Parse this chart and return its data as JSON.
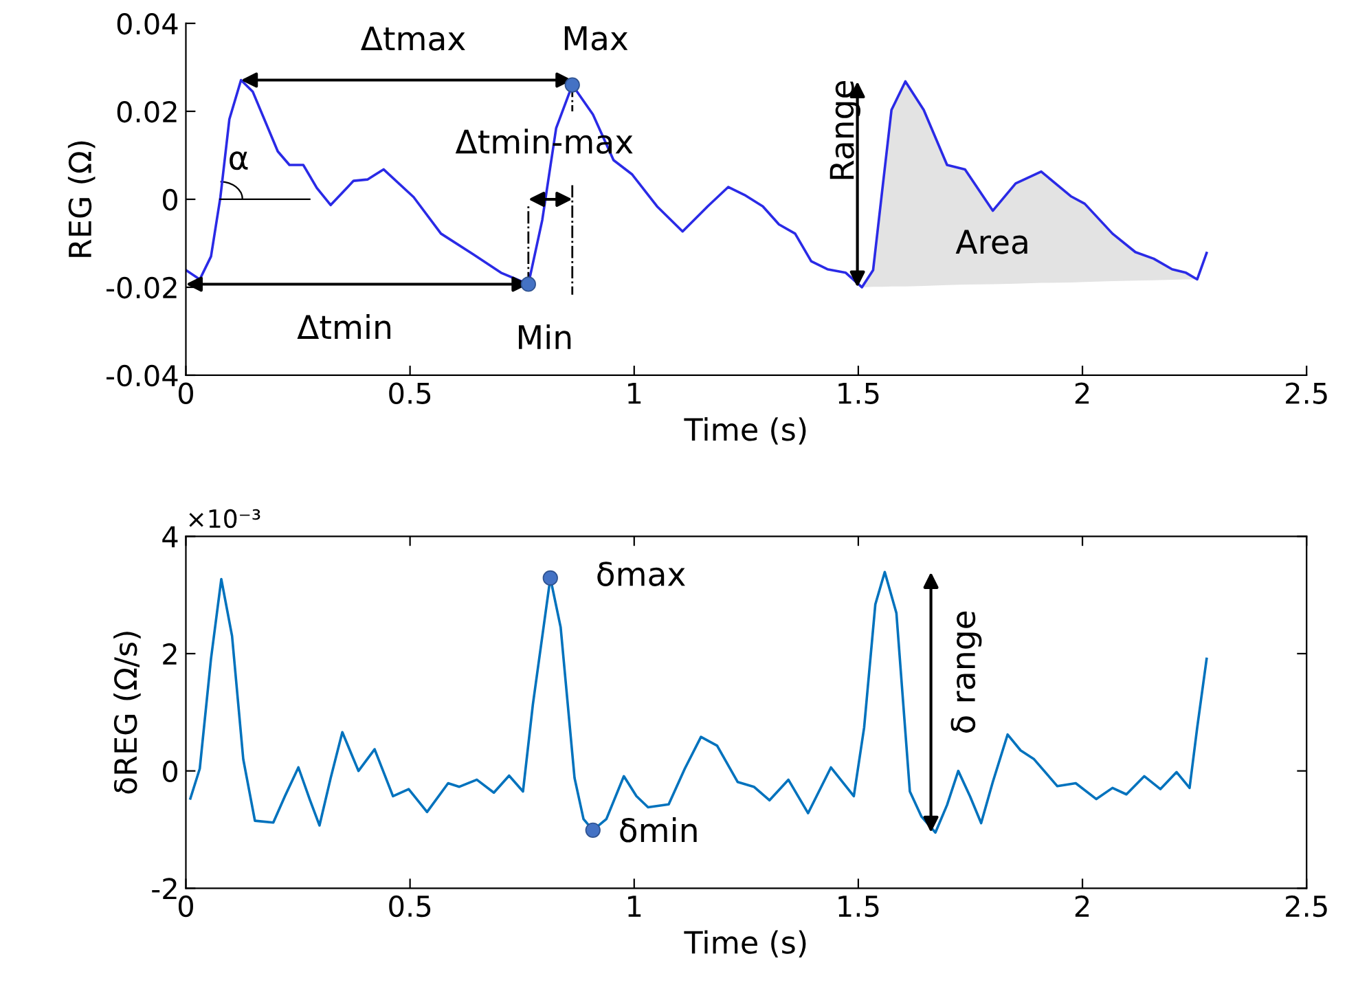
{
  "chart_data": [
    {
      "type": "line",
      "xlabel": "Time (s)",
      "ylabel": "REG (Ω)",
      "xlim": [
        0,
        2.5
      ],
      "ylim": [
        -0.04,
        0.04
      ],
      "xticks": [
        0,
        0.5,
        1,
        1.5,
        2,
        2.5
      ],
      "yticks": [
        {
          "value": -0.04,
          "label": "-0.04"
        },
        {
          "value": -0.02,
          "label": "-0.02"
        },
        0,
        0.02,
        0.04
      ],
      "series": [
        {
          "color": "#2a2ae6",
          "x": [
            0,
            0.031,
            0.056,
            0.077,
            0.097,
            0.123,
            0.149,
            0.205,
            0.231,
            0.262,
            0.292,
            0.323,
            0.374,
            0.405,
            0.441,
            0.508,
            0.569,
            0.641,
            0.703,
            0.764,
            0.795,
            0.826,
            0.862,
            0.908,
            0.954,
            0.995,
            1.051,
            1.108,
            1.164,
            1.21,
            1.246,
            1.287,
            1.323,
            1.359,
            1.395,
            1.431,
            1.472,
            1.508,
            1.533,
            1.554,
            1.574,
            1.605,
            1.646,
            1.698,
            1.738,
            1.8,
            1.851,
            1.908,
            1.974,
            2.005,
            2.067,
            2.118,
            2.159,
            2.2,
            2.231,
            2.256,
            2.277
          ],
          "values": [
            -0.0161,
            -0.0182,
            -0.013,
            0.0005,
            0.0182,
            0.0271,
            0.0245,
            0.0109,
            0.0078,
            0.0078,
            0.0026,
            -0.0013,
            0.0042,
            0.0045,
            0.0068,
            0.0005,
            -0.0078,
            -0.0125,
            -0.0167,
            -0.0193,
            -0.0047,
            0.0162,
            0.026,
            0.0193,
            0.0089,
            0.0057,
            -0.0016,
            -0.0073,
            -0.0016,
            0.0028,
            0.001,
            -0.0016,
            -0.0057,
            -0.0078,
            -0.0141,
            -0.0159,
            -0.0167,
            -0.02,
            -0.0161,
            0.0026,
            0.0203,
            0.0268,
            0.0203,
            0.0078,
            0.0068,
            -0.0026,
            0.0036,
            0.0063,
            0.0007,
            -0.001,
            -0.0078,
            -0.012,
            -0.0135,
            -0.0159,
            -0.0167,
            -0.0182,
            -0.0122
          ],
          "lower": [
            null,
            null,
            null,
            null,
            null,
            null,
            null,
            null,
            null,
            null,
            null,
            null,
            null,
            null,
            null,
            null,
            null,
            null,
            null,
            null,
            null,
            null,
            null,
            null,
            null,
            null,
            null,
            null,
            null,
            null,
            null,
            null,
            null,
            null,
            null,
            null,
            null,
            -0.02,
            -0.0199,
            -0.0199,
            -0.0198,
            -0.0198,
            -0.0197,
            -0.0195,
            -0.0194,
            -0.0193,
            -0.0192,
            -0.019,
            -0.0189,
            -0.0188,
            -0.0186,
            -0.0185,
            -0.0184,
            -0.0183,
            -0.0182,
            -0.0182,
            null
          ],
          "upper": [
            null,
            null,
            null,
            null,
            null,
            null,
            null,
            null,
            null,
            null,
            null,
            null,
            null,
            null,
            null,
            null,
            null,
            null,
            null,
            null,
            null,
            null,
            null,
            null,
            null,
            null,
            null,
            null,
            null,
            null,
            null,
            null,
            null,
            null,
            null,
            null,
            null,
            -0.02,
            -0.0161,
            0.0026,
            0.0203,
            0.0268,
            0.0203,
            0.0078,
            0.0068,
            -0.0026,
            0.0036,
            0.0063,
            0.0007,
            -0.001,
            -0.0078,
            -0.012,
            -0.0135,
            -0.0159,
            -0.0167,
            -0.0182,
            null
          ]
        },
        {
          "type": "scatter",
          "color": "#4472c4",
          "marker": "circle",
          "x": [
            0.764,
            0.862
          ],
          "values": [
            -0.0193,
            0.026
          ]
        }
      ],
      "annotations": [
        "Δtmax",
        {
          "text": "Max",
          "x": 0.862,
          "y": 0.026
        },
        "α",
        "Δtmin-max",
        "Δtmin",
        "Min",
        {
          "text": "Range",
          "x": 1.508,
          "y": -0.02
        },
        "Area"
      ]
    },
    {
      "type": "line",
      "xlabel": "Time (s)",
      "ylabel": "δREG (Ω/s)",
      "xlim": [
        0,
        2.5
      ],
      "ylim": [
        -2,
        4
      ],
      "xticks": [
        0,
        0.5,
        1,
        1.5,
        2,
        2.5
      ],
      "yticks": [
        {
          "value": -2,
          "label": "-2"
        },
        0,
        2,
        4
      ],
      "series": [
        {
          "color": "#0072bd",
          "x": [
            0.01,
            0.031,
            0.056,
            0.079,
            0.103,
            0.128,
            0.154,
            0.195,
            0.221,
            0.251,
            0.277,
            0.298,
            0.323,
            0.349,
            0.385,
            0.421,
            0.462,
            0.497,
            0.538,
            0.585,
            0.61,
            0.649,
            0.687,
            0.721,
            0.752,
            0.774,
            0.813,
            0.836,
            0.867,
            0.887,
            0.908,
            0.938,
            0.977,
            1.005,
            1.031,
            1.077,
            1.113,
            1.149,
            1.185,
            1.231,
            1.267,
            1.302,
            1.344,
            1.388,
            1.439,
            1.49,
            1.513,
            1.538,
            1.559,
            1.585,
            1.615,
            1.641,
            1.672,
            1.698,
            1.723,
            1.749,
            1.774,
            1.8,
            1.833,
            1.862,
            1.892,
            1.944,
            1.985,
            2.031,
            2.067,
            2.098,
            2.138,
            2.174,
            2.21,
            2.239,
            2.256,
            2.277
          ],
          "values": [
            -0.47,
            0.04,
            1.91,
            3.27,
            2.3,
            0.2,
            -0.85,
            -0.88,
            -0.43,
            0.06,
            -0.5,
            -0.93,
            -0.12,
            0.66,
            0.0,
            0.37,
            -0.43,
            -0.31,
            -0.7,
            -0.21,
            -0.27,
            -0.15,
            -0.37,
            -0.08,
            -0.35,
            1.13,
            3.29,
            2.45,
            -0.12,
            -0.82,
            -1.01,
            -0.82,
            -0.09,
            -0.43,
            -0.62,
            -0.57,
            0.04,
            0.58,
            0.43,
            -0.19,
            -0.27,
            -0.5,
            -0.15,
            -0.72,
            0.06,
            -0.43,
            0.74,
            2.84,
            3.39,
            2.69,
            -0.35,
            -0.78,
            -1.05,
            -0.58,
            0.0,
            -0.43,
            -0.89,
            -0.19,
            0.62,
            0.35,
            0.2,
            -0.26,
            -0.21,
            -0.48,
            -0.29,
            -0.4,
            -0.09,
            -0.31,
            -0.02,
            -0.29,
            0.74,
            1.91
          ]
        },
        {
          "type": "scatter",
          "color": "#4472c4",
          "marker": "circle",
          "x": [
            0.813,
            0.908
          ],
          "values": [
            3.29,
            -1.01
          ]
        }
      ],
      "annotations": [
        "×10⁻³",
        "δmax",
        "δmin",
        {
          "text": "δ range",
          "x": 1.672,
          "y": -1.05
        }
      ]
    }
  ]
}
